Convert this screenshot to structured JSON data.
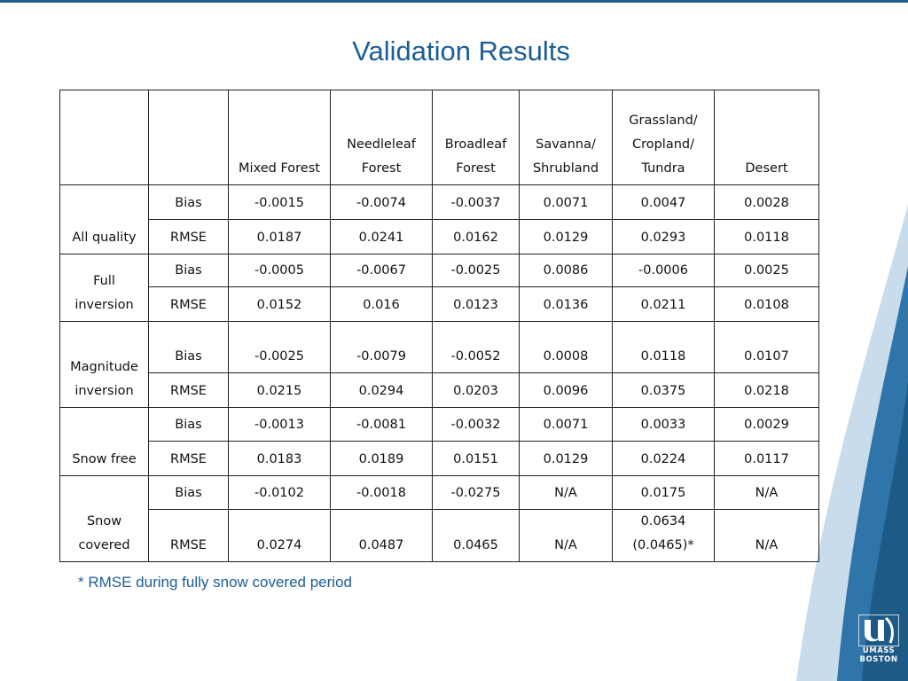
{
  "slide": {
    "title": "Validation Results",
    "footnote": "* RMSE during fully snow covered period",
    "logo": {
      "line1": "UMASS",
      "line2": "BOSTON"
    }
  },
  "colors": {
    "title": "#1d5e96",
    "wave_dark": "#1e5a86",
    "wave_mid": "#2f75aa",
    "wave_light": "#9fc0da"
  },
  "table": {
    "headers": [
      "",
      "",
      "Mixed Forest",
      "Needleleaf Forest",
      "Broadleaf Forest",
      "Savanna/ Shrubland",
      "Grassland/ Cropland/ Tundra",
      "Desert"
    ],
    "groups": [
      {
        "name": "All quality",
        "rows": [
          {
            "metric": "Bias",
            "values": [
              "-0.0015",
              "-0.0074",
              "-0.0037",
              "0.0071",
              "0.0047",
              "0.0028"
            ]
          },
          {
            "metric": "RMSE",
            "values": [
              "0.0187",
              "0.0241",
              "0.0162",
              "0.0129",
              "0.0293",
              "0.0118"
            ]
          }
        ]
      },
      {
        "name": "Full inversion",
        "rows": [
          {
            "metric": "Bias",
            "values": [
              "-0.0005",
              "-0.0067",
              "-0.0025",
              "0.0086",
              "-0.0006",
              "0.0025"
            ]
          },
          {
            "metric": "RMSE",
            "values": [
              "0.0152",
              "0.016",
              "0.0123",
              "0.0136",
              "0.0211",
              "0.0108"
            ]
          }
        ]
      },
      {
        "name": "Magnitude inversion",
        "rows": [
          {
            "metric": "Bias",
            "values": [
              "-0.0025",
              "-0.0079",
              "-0.0052",
              "0.0008",
              "0.0118",
              "0.0107"
            ]
          },
          {
            "metric": "RMSE",
            "values": [
              "0.0215",
              "0.0294",
              "0.0203",
              "0.0096",
              "0.0375",
              "0.0218"
            ]
          }
        ]
      },
      {
        "name": "Snow free",
        "rows": [
          {
            "metric": "Bias",
            "values": [
              "-0.0013",
              "-0.0081",
              "-0.0032",
              "0.0071",
              "0.0033",
              "0.0029"
            ]
          },
          {
            "metric": "RMSE",
            "values": [
              "0.0183",
              "0.0189",
              "0.0151",
              "0.0129",
              "0.0224",
              "0.0117"
            ]
          }
        ]
      },
      {
        "name": "Snow covered",
        "rows": [
          {
            "metric": "Bias",
            "values": [
              "-0.0102",
              "-0.0018",
              "-0.0275",
              "N/A",
              "0.0175",
              "N/A"
            ]
          },
          {
            "metric": "RMSE",
            "values": [
              "0.0274",
              "0.0487",
              "0.0465",
              "N/A",
              "0.0634 (0.0465)*",
              "N/A"
            ]
          }
        ]
      }
    ]
  }
}
